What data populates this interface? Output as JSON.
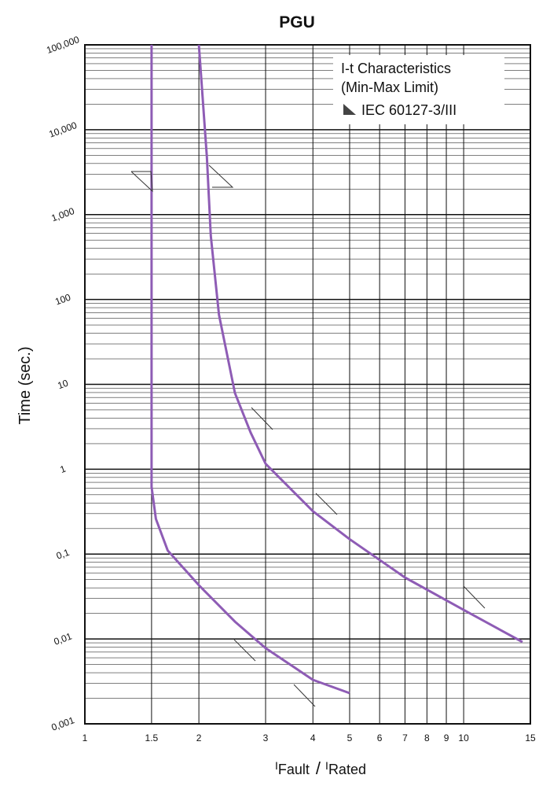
{
  "chart_data": {
    "type": "line",
    "title": "PGU",
    "ylabel": "Time (sec.)",
    "xlabel_parts": [
      "I",
      "Fault",
      "/",
      "I",
      "Rated"
    ],
    "annotation_lines": [
      "I-t Characteristics",
      "(Min-Max Limit)",
      "IEC 60127-3/III"
    ],
    "xlog": true,
    "ylog": true,
    "grid": true,
    "xlim": [
      1,
      15
    ],
    "ylim": [
      0.001,
      100000
    ],
    "xticks": [
      1,
      1.5,
      2,
      3,
      4,
      5,
      6,
      7,
      8,
      9,
      10,
      15
    ],
    "yticks": [
      {
        "value": 0.001,
        "label": "0,001"
      },
      {
        "value": 0.01,
        "label": "0,01"
      },
      {
        "value": 0.1,
        "label": "0,1"
      },
      1,
      10,
      100,
      {
        "value": 1000,
        "label": "1,000"
      },
      {
        "value": 10000,
        "label": "10,000"
      },
      {
        "value": 100000,
        "label": "100,000"
      }
    ],
    "series": [
      {
        "color": "#8e5cb5",
        "x": [
          1.5,
          1.5,
          1.54,
          1.655,
          2,
          2.49,
          3,
          4,
          5
        ],
        "values": [
          100000,
          0.62,
          0.26,
          0.11,
          0.043,
          0.016,
          0.0078,
          0.0033,
          0.0023
        ]
      },
      {
        "color": "#8e5cb5",
        "x": [
          2,
          2.1,
          2.15,
          2.26,
          2.49,
          2.74,
          3,
          4,
          5,
          7,
          10,
          14.3
        ],
        "values": [
          100000,
          4770,
          560,
          66,
          7.9,
          2.7,
          1.16,
          0.32,
          0.15,
          0.053,
          0.022,
          0.0092
        ]
      }
    ]
  }
}
